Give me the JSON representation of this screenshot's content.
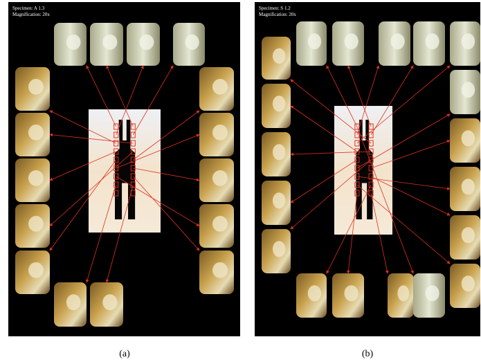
{
  "panels": [
    {
      "specimen": "Specimen: A 1.3",
      "magnification": "Magnification: 20x",
      "caption": "(a)"
    },
    {
      "specimen": "Specimen: S 1.2",
      "magnification": "Magnification: 20x",
      "caption": "(b)"
    }
  ]
}
